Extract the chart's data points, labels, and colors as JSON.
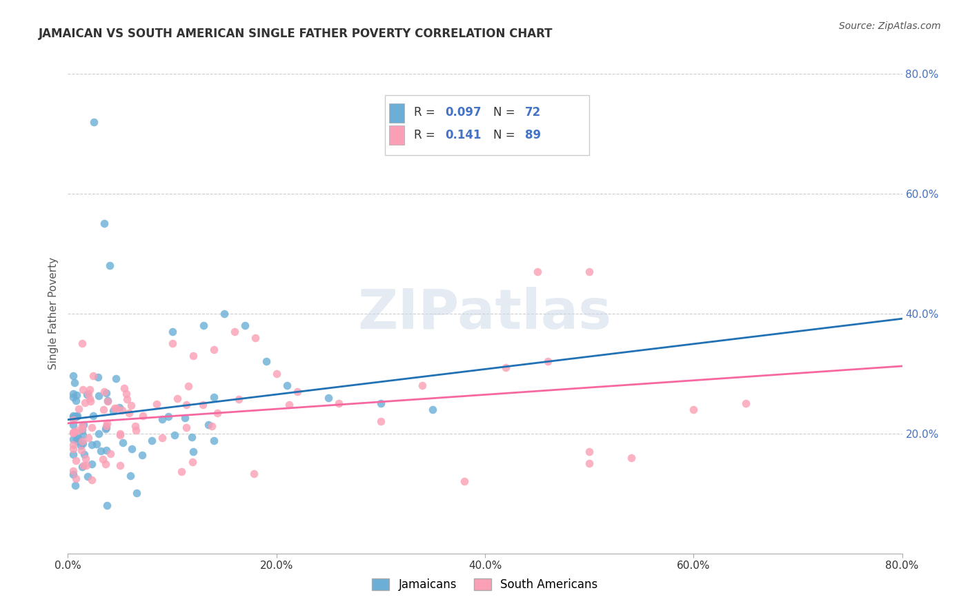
{
  "title": "JAMAICAN VS SOUTH AMERICAN SINGLE FATHER POVERTY CORRELATION CHART",
  "source": "Source: ZipAtlas.com",
  "ylabel": "Single Father Poverty",
  "xlim": [
    0.0,
    0.8
  ],
  "ylim": [
    0.0,
    0.8
  ],
  "xticks": [
    0.0,
    0.2,
    0.4,
    0.6,
    0.8
  ],
  "xtick_labels": [
    "0.0%",
    "20.0%",
    "40.0%",
    "60.0%",
    "80.0%"
  ],
  "yticks_right": [
    0.2,
    0.4,
    0.6,
    0.8
  ],
  "ytick_labels_right": [
    "20.0%",
    "40.0%",
    "60.0%",
    "80.0%"
  ],
  "jamaican_color": "#6baed6",
  "south_american_color": "#fa9fb5",
  "jamaican_line_color": "#2171b5",
  "south_american_line_color": "#f768a1",
  "jamaican_R": 0.097,
  "jamaican_N": 72,
  "south_american_R": 0.141,
  "south_american_N": 89,
  "watermark": "ZIPatlas",
  "right_tick_color": "#4472c4",
  "grid_color": "#cccccc",
  "title_color": "#333333",
  "source_color": "#555555",
  "watermark_color": "#ccd9e8"
}
